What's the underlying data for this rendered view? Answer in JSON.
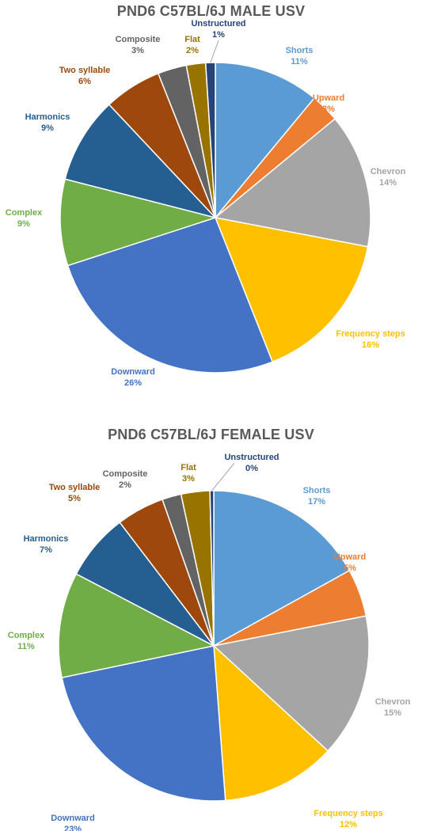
{
  "chart_data": [
    {
      "type": "pie",
      "title": "PND6 C57BL/6J MALE USV",
      "categories": [
        "Shorts",
        "Upward",
        "Chevron",
        "Frequency steps",
        "Downward",
        "Complex",
        "Harmonics",
        "Two syllable",
        "Composite",
        "Flat",
        "Unstructured"
      ],
      "values": [
        11,
        3,
        14,
        16,
        26,
        9,
        9,
        6,
        3,
        2,
        1
      ],
      "value_labels": [
        "11%",
        "3%",
        "14%",
        "16%",
        "26%",
        "9%",
        "9%",
        "6%",
        "3%",
        "2%",
        "1%"
      ],
      "colors": [
        "#5B9BD5",
        "#ED7D31",
        "#A5A5A5",
        "#FFC000",
        "#4472C4",
        "#70AD47",
        "#255E91",
        "#9E480E",
        "#636363",
        "#997300",
        "#264478"
      ],
      "legend": "none",
      "start_angle_deg": 0,
      "direction": "clockwise"
    },
    {
      "type": "pie",
      "title": "PND6 C57BL/6J FEMALE USV",
      "categories": [
        "Shorts",
        "Upward",
        "Chevron",
        "Frequency steps",
        "Downward",
        "Complex",
        "Harmonics",
        "Two syllable",
        "Composite",
        "Flat",
        "Unstructured"
      ],
      "values": [
        17,
        5,
        15,
        12,
        23,
        11,
        7,
        5,
        2,
        3,
        0.4
      ],
      "value_labels": [
        "17%",
        "5%",
        "15%",
        "12%",
        "23%",
        "11%",
        "7%",
        "5%",
        "2%",
        "3%",
        "0%"
      ],
      "colors": [
        "#5B9BD5",
        "#ED7D31",
        "#A5A5A5",
        "#FFC000",
        "#4472C4",
        "#70AD47",
        "#255E91",
        "#9E480E",
        "#636363",
        "#997300",
        "#264478"
      ],
      "legend": "none",
      "start_angle_deg": 0,
      "direction": "clockwise"
    }
  ]
}
